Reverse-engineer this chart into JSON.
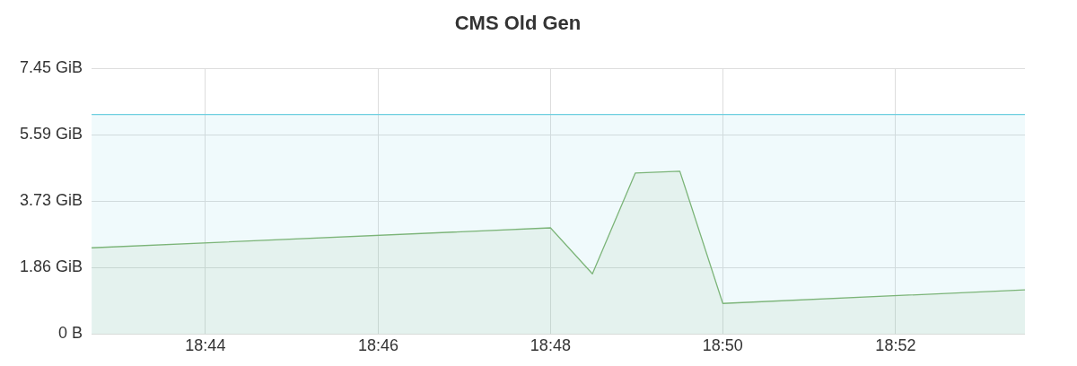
{
  "chart_data": {
    "type": "area",
    "title": "CMS Old Gen",
    "marker": "none",
    "grid": true,
    "legend": false,
    "xlim": [
      18.7113,
      18.8917
    ],
    "xticks": [
      {
        "value": 18.7333,
        "label": "18:44"
      },
      {
        "value": 18.7667,
        "label": "18:46"
      },
      {
        "value": 18.8,
        "label": "18:48"
      },
      {
        "value": 18.8333,
        "label": "18:50"
      },
      {
        "value": 18.8667,
        "label": "18:52"
      }
    ],
    "ylim": [
      0,
      7.45
    ],
    "yticks": [
      {
        "value": 0,
        "label": "0 B"
      },
      {
        "value": 1.86,
        "label": "1.86 GiB"
      },
      {
        "value": 3.73,
        "label": "3.73 GiB"
      },
      {
        "value": 5.59,
        "label": "5.59 GiB"
      },
      {
        "value": 7.45,
        "label": "7.45 GiB"
      }
    ],
    "series": [
      {
        "color": "#6ed0e0",
        "x": [
          18.7113,
          18.8917
        ],
        "values": [
          6.16,
          6.16
        ]
      },
      {
        "color": "#7eb26d",
        "x": [
          18.7113,
          18.8,
          18.8081,
          18.8164,
          18.825,
          18.8333,
          18.8917
        ],
        "values": [
          2.42,
          2.98,
          1.69,
          4.52,
          4.57,
          0.86,
          1.24
        ]
      }
    ]
  }
}
